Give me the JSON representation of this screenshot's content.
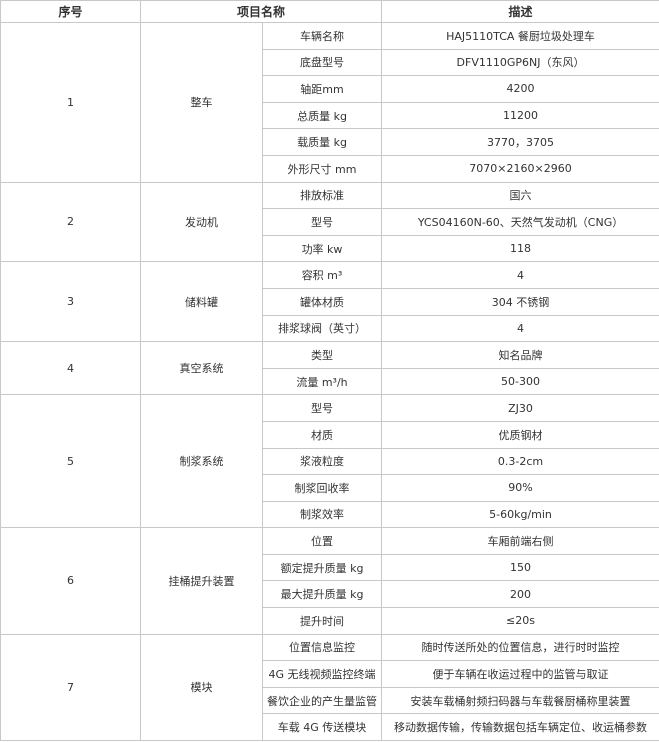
{
  "header": [
    "序号",
    "项目名称",
    "描述"
  ],
  "groups": [
    {
      "no": "1",
      "name": "整车",
      "items": [
        [
          "车辆名称",
          "HAJ5110TCA 餐厨垃圾处理车"
        ],
        [
          "底盘型号",
          "DFV1110GP6NJ（东风）"
        ],
        [
          "轴距mm",
          "4200"
        ],
        [
          "总质量 kg",
          "11200"
        ],
        [
          "载质量 kg",
          "3770，3705"
        ],
        [
          "外形尺寸 mm",
          "7070×2160×2960"
        ]
      ]
    },
    {
      "no": "2",
      "name": "发动机",
      "items": [
        [
          "排放标准",
          "国六"
        ],
        [
          "型号",
          "YCS04160N-60、天然气发动机（CNG）"
        ],
        [
          "功率 kw",
          "118"
        ]
      ]
    },
    {
      "no": "3",
      "name": "储料罐",
      "items": [
        [
          "容积 m³",
          "4"
        ],
        [
          "罐体材质",
          "304 不锈钢"
        ],
        [
          "排浆球阀（英寸）",
          "4"
        ]
      ]
    },
    {
      "no": "4",
      "name": "真空系统",
      "items": [
        [
          "类型",
          "知名品牌"
        ],
        [
          "流量 m³/h",
          "50-300"
        ]
      ]
    },
    {
      "no": "5",
      "name": "制浆系统",
      "items": [
        [
          "型号",
          "ZJ30"
        ],
        [
          "材质",
          "优质钢材"
        ],
        [
          "浆液粒度",
          "0.3-2cm"
        ],
        [
          "制浆回收率",
          "90%"
        ],
        [
          "制浆效率",
          "5-60kg/min"
        ]
      ]
    },
    {
      "no": "6",
      "name": "挂桶提升装置",
      "items": [
        [
          "位置",
          "车厢前端右侧"
        ],
        [
          "额定提升质量 kg",
          "150"
        ],
        [
          "最大提升质量 kg",
          "200"
        ],
        [
          "提升时间",
          "≤20s"
        ]
      ]
    },
    {
      "no": "7",
      "name": "模块",
      "items": [
        [
          "位置信息监控",
          "随时传送所处的位置信息，进行时时监控"
        ],
        [
          "4G 无线视频监控终端",
          "便于车辆在收运过程中的监管与取证"
        ],
        [
          "餐饮企业的产生量监管",
          "安装车载桶射频扫码器与车载餐厨桶称里装置"
        ],
        [
          "车载 4G 传送模块",
          "移动数据传输，传输数据包括车辆定位、收运桶参数"
        ]
      ]
    }
  ]
}
